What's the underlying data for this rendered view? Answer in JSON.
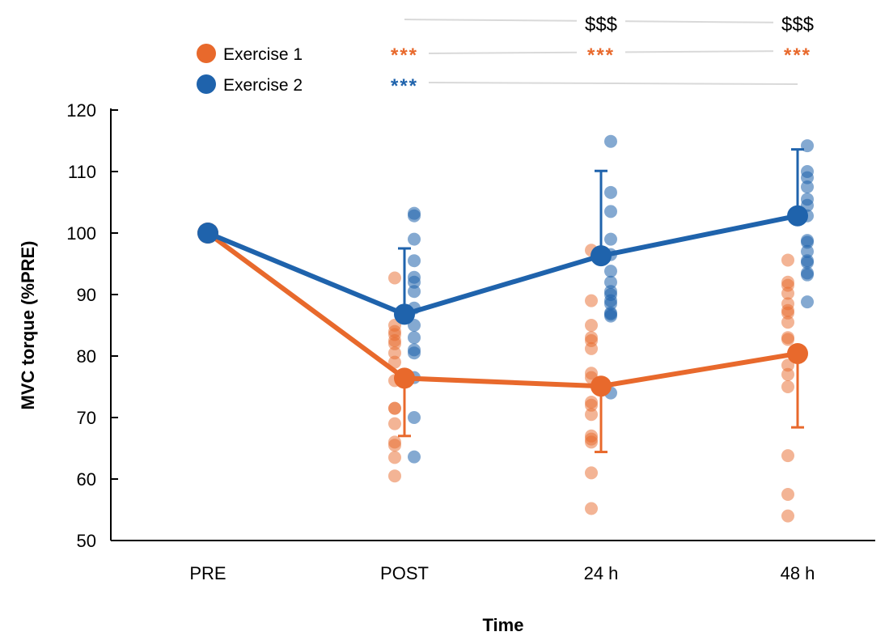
{
  "chart_data": {
    "type": "line",
    "xlabel": "Time",
    "ylabel": "MVC torque (%PRE)",
    "categories": [
      "PRE",
      "POST",
      "24 h",
      "48 h"
    ],
    "ylim": [
      50,
      120
    ],
    "yticks": [
      50,
      60,
      70,
      80,
      90,
      100,
      110,
      120
    ],
    "grid": false,
    "legend_position": "top-left",
    "series": [
      {
        "name": "Exercise 1",
        "color": "#E8692C",
        "means": [
          100,
          76.4,
          75.1,
          80.4
        ],
        "sd": [
          0,
          9.4,
          10.7,
          12.0
        ],
        "error_direction": "down",
        "individual": [
          [],
          [
            92.7,
            85,
            84,
            83.5,
            82.5,
            82,
            80.5,
            79,
            76,
            71.5,
            71.5,
            69,
            66,
            65.5,
            63.5,
            60.5
          ],
          [
            97.2,
            89,
            85,
            83,
            82.5,
            81.2,
            77.2,
            76.5,
            72.5,
            72,
            70.5,
            67,
            66.5,
            66,
            61,
            55.2
          ],
          [
            95.6,
            92,
            91.5,
            90.2,
            88.5,
            87.4,
            87,
            85.5,
            83,
            82.7,
            78.5,
            77,
            75,
            63.8,
            57.5,
            54
          ]
        ]
      },
      {
        "name": "Exercise 2",
        "color": "#1F63AC",
        "means": [
          100,
          86.8,
          96.3,
          102.8
        ],
        "sd": [
          0,
          10.7,
          13.8,
          10.8
        ],
        "error_direction": "up",
        "individual": [
          [],
          [
            103.2,
            102.8,
            99,
            95.5,
            92.8,
            92,
            90.5,
            87.8,
            85,
            83,
            81,
            80.5,
            76.5,
            70,
            63.6
          ],
          [
            114.9,
            106.6,
            103.5,
            99,
            96.5,
            93.8,
            92,
            90.5,
            90,
            89,
            88.5,
            87,
            86.8,
            86.5,
            74
          ],
          [
            114.2,
            110,
            109,
            107.5,
            105.5,
            104.5,
            102.8,
            98.8,
            98.5,
            97,
            95.5,
            95.2,
            93.5,
            93.2,
            88.8
          ]
        ]
      }
    ],
    "annotations": [
      {
        "series": "Exercise 1",
        "text": "***",
        "positions": [
          "POST",
          "24 h",
          "48 h"
        ]
      },
      {
        "series": "Exercise 2",
        "text": "***",
        "positions": [
          "POST"
        ]
      },
      {
        "series": "between",
        "text": "$$$",
        "positions": [
          "24 h",
          "48 h"
        ]
      }
    ]
  }
}
